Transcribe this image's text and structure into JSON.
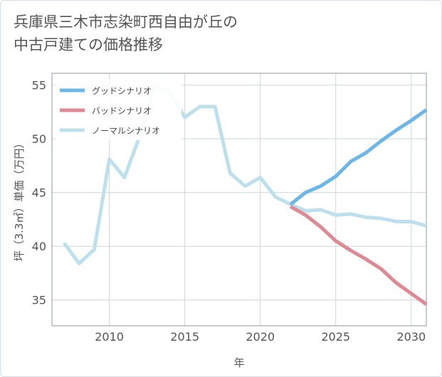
{
  "title_line1": "兵庫県三木市志染町西自由が丘の",
  "title_line2": "中古戸建ての価格推移",
  "chart_data": {
    "type": "line",
    "xlabel": "年",
    "ylabel": "坪（3.3㎡）単価（万円）",
    "xlim": [
      2006.2,
      2031
    ],
    "ylim": [
      32.6,
      56.1
    ],
    "x_ticks": [
      2010,
      2015,
      2020,
      2025,
      2030
    ],
    "y_ticks": [
      35,
      40,
      45,
      50,
      55
    ],
    "grid": true,
    "legend_position": "top-left",
    "series": [
      {
        "name": "グッドシナリオ",
        "color": "#6cb7e8",
        "x": [
          2022,
          2023,
          2024,
          2025,
          2026,
          2027,
          2028,
          2029,
          2030,
          2031
        ],
        "values": [
          43.9,
          45.0,
          45.6,
          46.5,
          47.9,
          48.7,
          49.8,
          50.8,
          51.7,
          52.7
        ]
      },
      {
        "name": "バッドシナリオ",
        "color": "#de8a95",
        "x": [
          2022,
          2023,
          2024,
          2025,
          2026,
          2027,
          2028,
          2029,
          2030,
          2031
        ],
        "values": [
          43.7,
          42.9,
          41.8,
          40.5,
          39.6,
          38.8,
          37.9,
          36.6,
          35.6,
          34.6
        ]
      },
      {
        "name": "ノーマルシナリオ",
        "color": "#bde0ec",
        "x": [
          2007,
          2008,
          2009,
          2010,
          2011,
          2012,
          2013,
          2014,
          2015,
          2016,
          2017,
          2018,
          2019,
          2020,
          2021,
          2022,
          2023,
          2024,
          2025,
          2026,
          2027,
          2028,
          2029,
          2030,
          2031
        ],
        "values": [
          40.3,
          38.4,
          39.7,
          48.1,
          46.4,
          50.2,
          54.9,
          54.4,
          52.0,
          53.0,
          53.0,
          46.8,
          45.6,
          46.4,
          44.6,
          43.9,
          43.3,
          43.4,
          42.9,
          43.0,
          42.7,
          42.6,
          42.3,
          42.3,
          41.9
        ]
      }
    ]
  }
}
